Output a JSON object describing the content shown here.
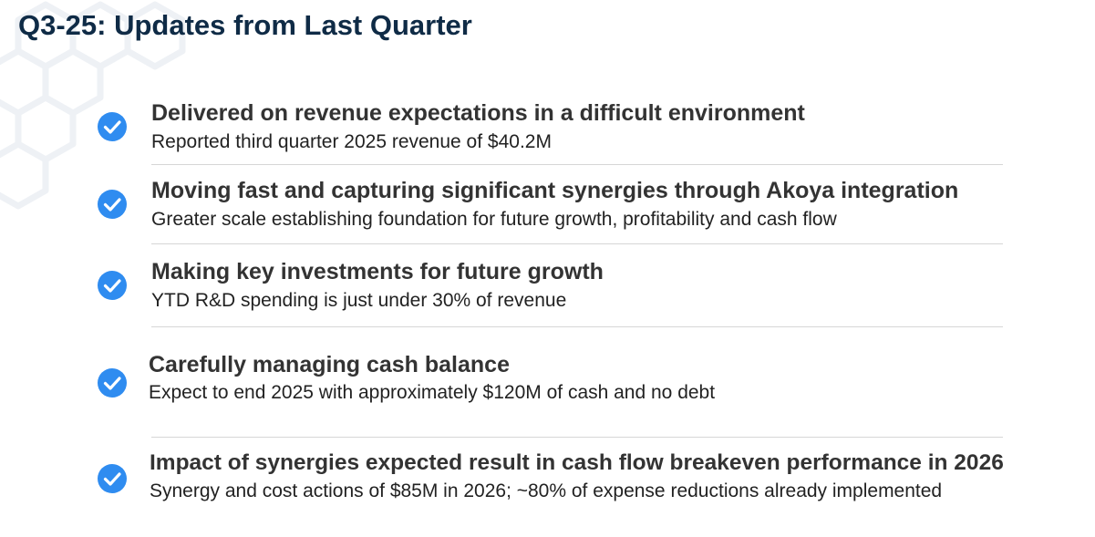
{
  "page": {
    "title": "Q3-25:  Updates from Last Quarter"
  },
  "colors": {
    "title": "#0f2b46",
    "check_fill": "#2f8cf0",
    "heading": "#333333",
    "divider": "#d6d6d6"
  },
  "items": [
    {
      "icon": "check-circle-icon",
      "heading": "Delivered on revenue expectations in a difficult environment",
      "detail": "Reported third quarter 2025 revenue of $40.2M"
    },
    {
      "icon": "check-circle-icon",
      "heading": "Moving fast and capturing significant synergies through Akoya integration",
      "detail": "Greater scale establishing foundation for future growth, profitability and cash flow"
    },
    {
      "icon": "check-circle-icon",
      "heading": "Making key investments for future growth",
      "detail": "YTD R&D spending is just under 30% of revenue"
    },
    {
      "icon": "check-circle-icon",
      "heading": "Carefully managing cash balance",
      "detail": "Expect to end 2025 with approximately $120M of cash and no debt"
    },
    {
      "icon": "check-circle-icon",
      "heading": "Impact of synergies expected result in cash flow breakeven performance in 2026",
      "detail": "Synergy and cost actions of $85M in 2026; ~80% of expense reductions already implemented"
    }
  ]
}
